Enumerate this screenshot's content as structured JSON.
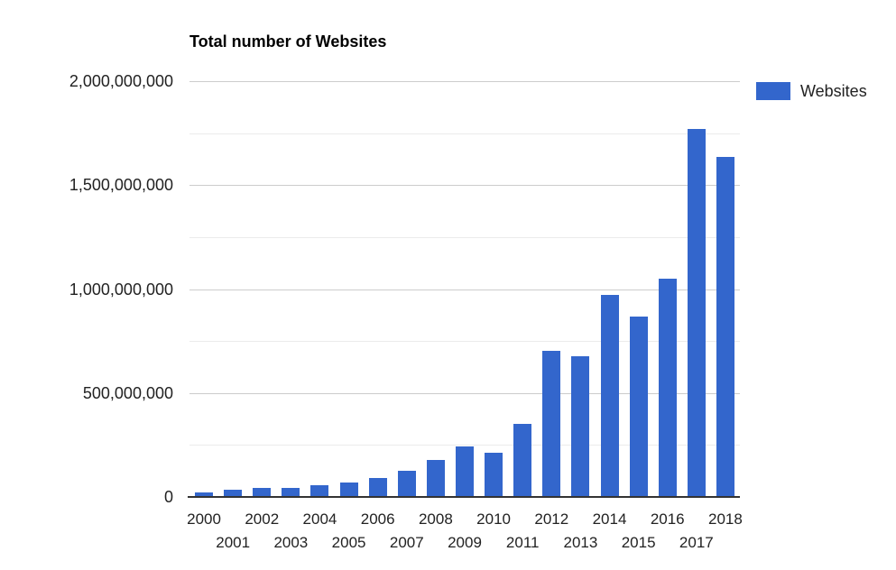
{
  "chart_data": {
    "type": "bar",
    "title": "Total number of Websites",
    "categories": [
      "2000",
      "2001",
      "2002",
      "2003",
      "2004",
      "2005",
      "2006",
      "2007",
      "2008",
      "2009",
      "2010",
      "2011",
      "2012",
      "2013",
      "2014",
      "2015",
      "2016",
      "2017",
      "2018"
    ],
    "series": [
      {
        "name": "Websites",
        "values": [
          17000000,
          29000000,
          39000000,
          41000000,
          52000000,
          65000000,
          86000000,
          122000000,
          172000000,
          238000000,
          207000000,
          346000000,
          697000000,
          673000000,
          969000000,
          863000000,
          1046000000,
          1767000000,
          1630000000
        ]
      }
    ],
    "xlabel": "",
    "ylabel": "",
    "ylim": [
      0,
      2000000000
    ],
    "grid": true,
    "yticks_major": [
      {
        "value": 0,
        "label": "0"
      },
      {
        "value": 500000000,
        "label": "500,000,000"
      },
      {
        "value": 1000000000,
        "label": "1,000,000,000"
      },
      {
        "value": 1500000000,
        "label": "1,500,000,000"
      },
      {
        "value": 2000000000,
        "label": "2,000,000,000"
      }
    ],
    "yticks_minor": [
      250000000,
      750000000,
      1250000000,
      1750000000
    ],
    "legend_position": "top-right",
    "legend": {
      "entries": [
        {
          "label": "Websites",
          "color": "#3366cc"
        }
      ]
    },
    "colors": {
      "bar": "#3366cc",
      "gridline_major": "#cccccc",
      "gridline_minor": "#ebebeb",
      "axis_baseline": "#333333",
      "title_text": "#000000",
      "axis_text": "#222222",
      "background": "#ffffff"
    }
  }
}
